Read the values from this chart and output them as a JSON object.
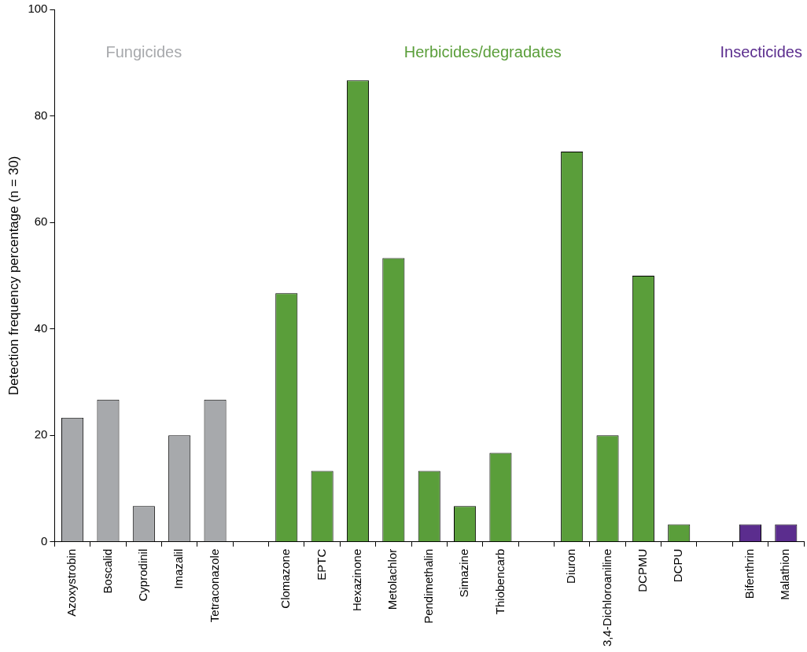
{
  "chart_data": {
    "type": "bar",
    "ylabel": "Detection frequency percentage (n = 30)",
    "categories": [
      "Azoxystrobin",
      "Boscalid",
      "Cyprodinil",
      "Imazalil",
      "Tetraconazole",
      null,
      "Clomazone",
      "EPTC",
      "Hexazinone",
      "Metolachlor",
      "Pendimethalin",
      "Simazine",
      "Thiobencarb",
      null,
      "Diuron",
      "3,4-Dichloroaniline",
      "DCPMU",
      "DCPU",
      null,
      "Bifenthrin",
      "Malathion"
    ],
    "series": [
      {
        "name": "Fungicides",
        "color": "#a7a9ac",
        "values": [
          23.3,
          26.7,
          6.7,
          20,
          26.7,
          null,
          null,
          null,
          null,
          null,
          null,
          null,
          null,
          null,
          null,
          null,
          null,
          null,
          null,
          null,
          null
        ]
      },
      {
        "name": "Herbicides/degradates",
        "color": "#5a9e3a",
        "values": [
          null,
          null,
          null,
          null,
          null,
          null,
          46.7,
          13.3,
          86.7,
          53.3,
          13.3,
          6.7,
          16.7,
          null,
          73.3,
          20,
          50,
          3.3,
          null,
          null,
          null
        ]
      },
      {
        "name": "Insecticides",
        "color": "#5b2d8e",
        "values": [
          null,
          null,
          null,
          null,
          null,
          null,
          null,
          null,
          null,
          null,
          null,
          null,
          null,
          null,
          null,
          null,
          null,
          null,
          null,
          3.3,
          3.3
        ]
      }
    ],
    "ylim": [
      0,
      100
    ],
    "yticks": [
      0,
      20,
      40,
      60,
      80,
      100
    ],
    "grid": false,
    "legend": false
  }
}
